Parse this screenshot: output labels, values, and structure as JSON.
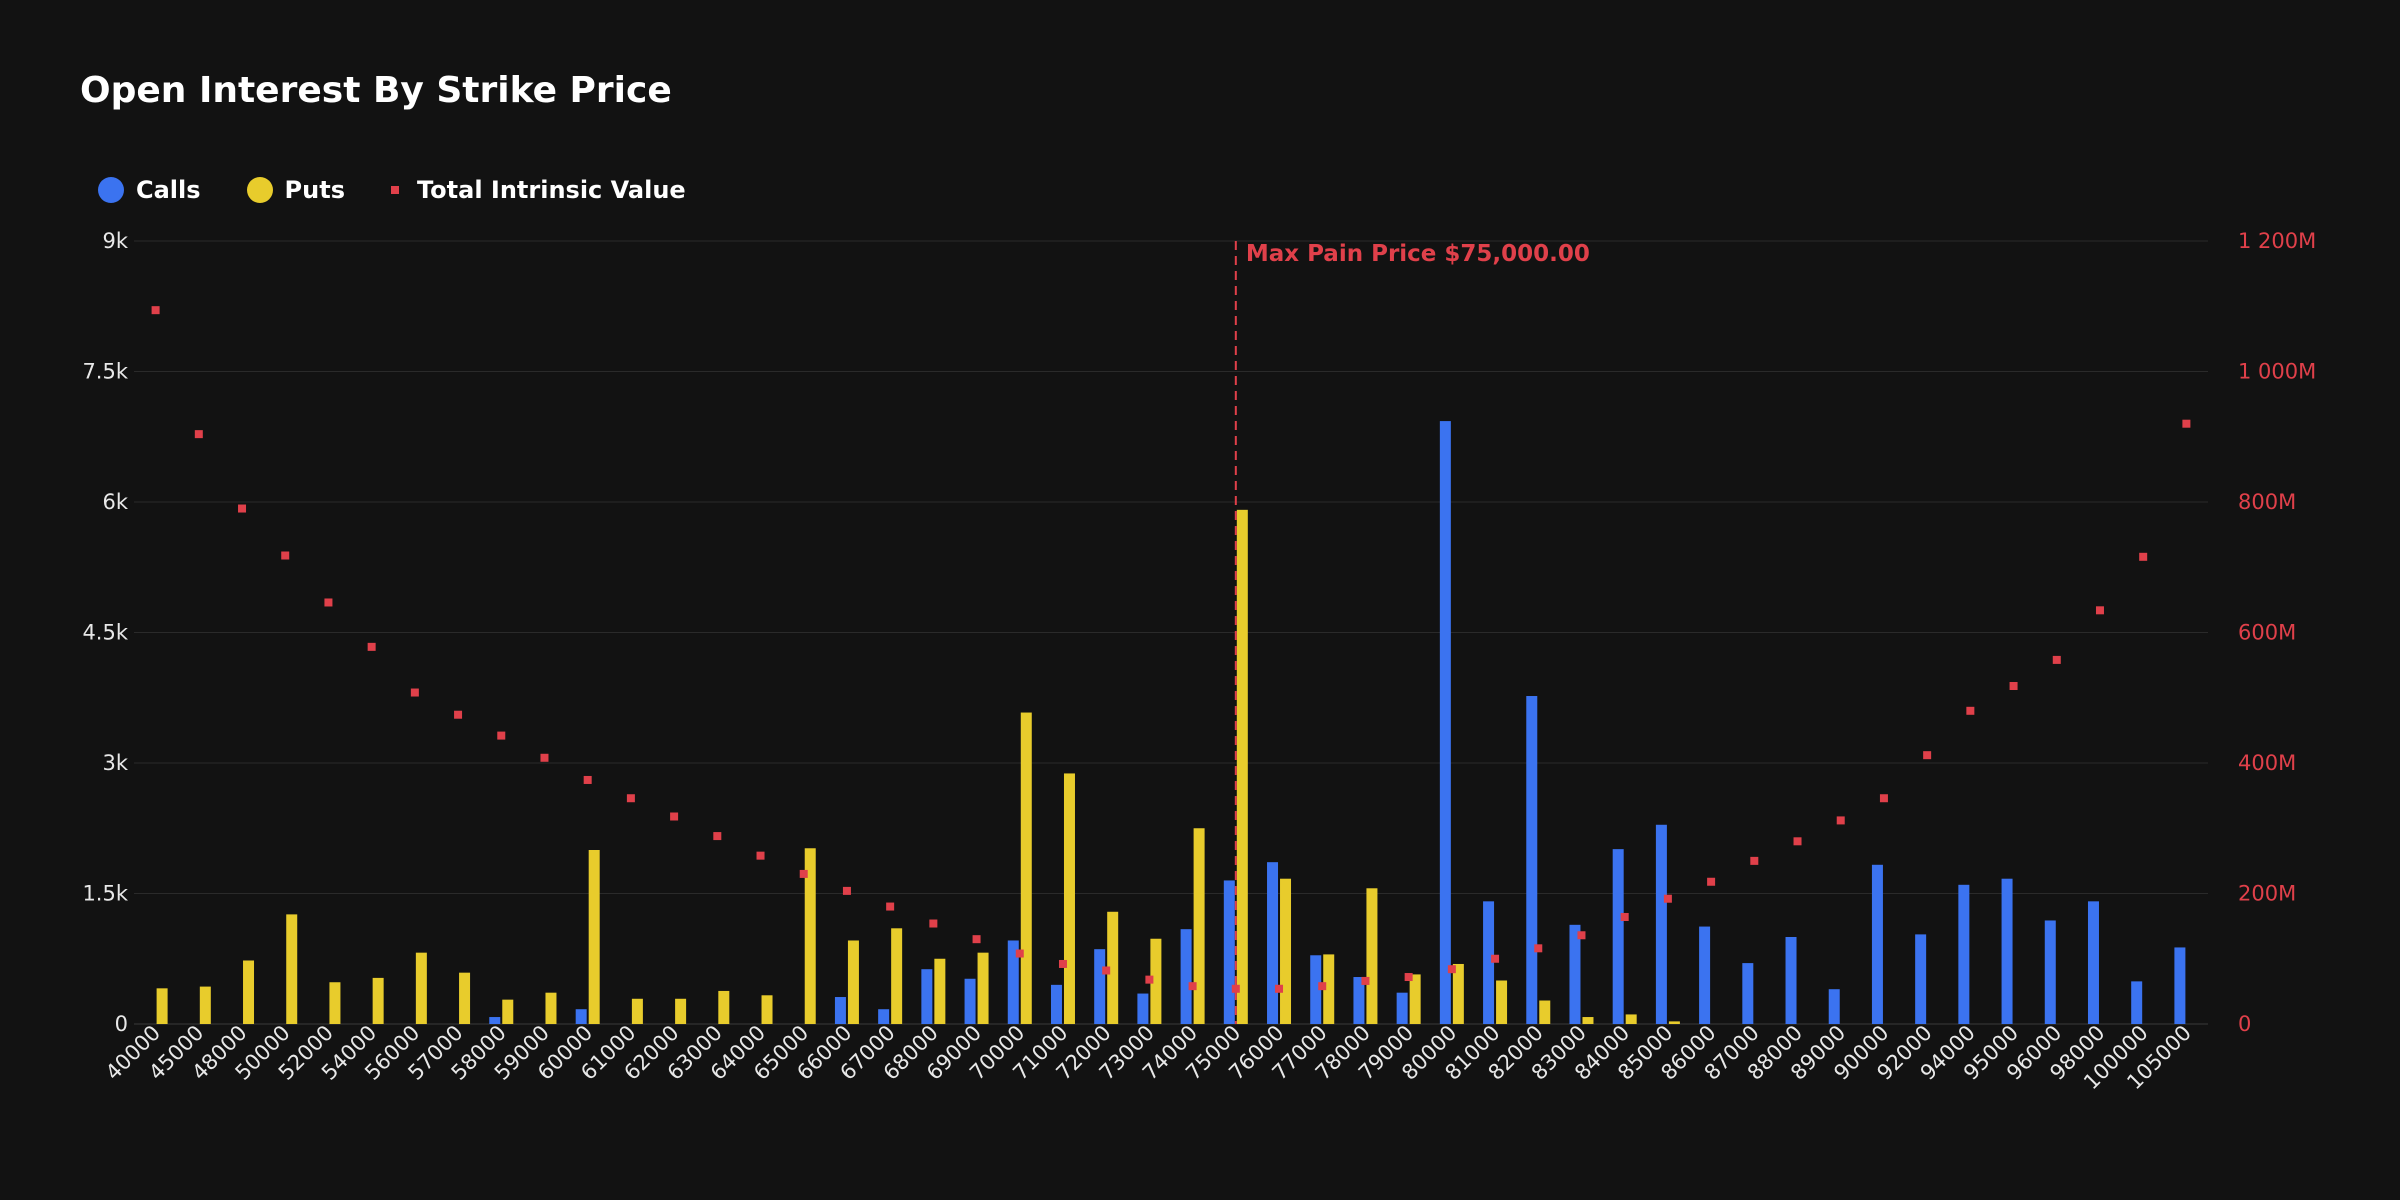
{
  "chart_data": {
    "type": "bar",
    "title": "Open Interest By Strike Price",
    "xlabel": "",
    "ylabel": "",
    "ylim": [
      0,
      9000
    ],
    "y2lim": [
      0,
      1200
    ],
    "y_ticks": [
      "0",
      "1.5k",
      "3k",
      "4.5k",
      "6k",
      "7.5k",
      "9k"
    ],
    "y_tick_values": [
      0,
      1500,
      3000,
      4500,
      6000,
      7500,
      9000
    ],
    "y2_ticks": [
      "0",
      "200M",
      "400M",
      "600M",
      "800M",
      "1 000M",
      "1 200M"
    ],
    "y2_tick_values": [
      0,
      200,
      400,
      600,
      800,
      1000,
      1200
    ],
    "grid": true,
    "legend_position": "top-left",
    "categories": [
      "40000",
      "45000",
      "48000",
      "50000",
      "52000",
      "54000",
      "56000",
      "57000",
      "58000",
      "59000",
      "60000",
      "61000",
      "62000",
      "63000",
      "64000",
      "65000",
      "66000",
      "67000",
      "68000",
      "69000",
      "70000",
      "71000",
      "72000",
      "73000",
      "74000",
      "75000",
      "76000",
      "77000",
      "78000",
      "79000",
      "80000",
      "81000",
      "82000",
      "83000",
      "84000",
      "85000",
      "86000",
      "87000",
      "88000",
      "89000",
      "90000",
      "92000",
      "94000",
      "95000",
      "96000",
      "98000",
      "100000",
      "105000"
    ],
    "series": [
      {
        "name": "Calls",
        "type": "bar",
        "color": "#3b73f0",
        "values": [
          0,
          0,
          0,
          0,
          0,
          0,
          0,
          0,
          80,
          0,
          170,
          0,
          0,
          0,
          0,
          0,
          310,
          170,
          630,
          520,
          960,
          450,
          860,
          350,
          1090,
          1650,
          1860,
          790,
          540,
          360,
          6930,
          1410,
          3770,
          1140,
          2010,
          2290,
          1120,
          700,
          1000,
          400,
          1830,
          1030,
          1600,
          1670,
          1190,
          1410,
          490,
          880
        ]
      },
      {
        "name": "Puts",
        "type": "bar",
        "color": "#e8cc2c",
        "values": [
          410,
          430,
          730,
          1260,
          480,
          530,
          820,
          590,
          280,
          360,
          2000,
          290,
          290,
          380,
          330,
          2020,
          960,
          1100,
          750,
          820,
          3580,
          2880,
          1290,
          980,
          2250,
          5910,
          1670,
          800,
          1560,
          570,
          690,
          500,
          270,
          80,
          110,
          30,
          0,
          0,
          0,
          0,
          0,
          0,
          0,
          0,
          0,
          0,
          0,
          0
        ]
      },
      {
        "name": "Total Intrinsic Value",
        "type": "scatter",
        "axis": "right",
        "color": "#e0404a",
        "values": [
          1094,
          904,
          790,
          718,
          646,
          578,
          508,
          474,
          442,
          408,
          374,
          346,
          318,
          288,
          258,
          230,
          204,
          180,
          154,
          130,
          108,
          92,
          82,
          68,
          58,
          54,
          54,
          58,
          66,
          72,
          84,
          100,
          116,
          136,
          164,
          192,
          218,
          250,
          280,
          312,
          346,
          412,
          480,
          518,
          558,
          634,
          716,
          920
        ]
      }
    ],
    "annotations": [
      {
        "label": "Max Pain Price $75,000.00",
        "x": "75000",
        "color": "#e0404a"
      }
    ]
  }
}
